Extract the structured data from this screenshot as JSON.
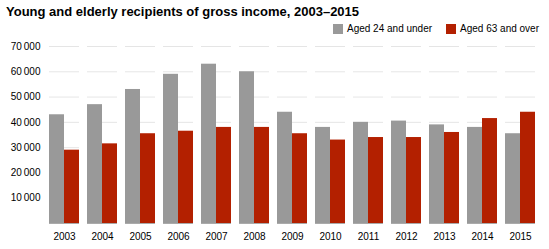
{
  "chart_data": {
    "type": "bar",
    "title": "Young and elderly recipients of gross income, 2003–2015",
    "categories": [
      "2003",
      "2004",
      "2005",
      "2006",
      "2007",
      "2008",
      "2009",
      "2010",
      "2011",
      "2012",
      "2013",
      "2014",
      "2015"
    ],
    "series": [
      {
        "name": "Aged 24 and under",
        "color": "#999999",
        "values": [
          43000,
          47000,
          53000,
          59000,
          63000,
          60000,
          44000,
          38000,
          40000,
          40500,
          39000,
          38000,
          35500
        ]
      },
      {
        "name": "Aged 63 and over",
        "color": "#b32000",
        "values": [
          29000,
          31500,
          35500,
          36500,
          38000,
          38000,
          35500,
          33000,
          34000,
          34000,
          36000,
          41500,
          44000
        ]
      }
    ],
    "ylim": [
      0,
      70000
    ],
    "yticks": [
      {
        "value": 0,
        "label": ""
      },
      {
        "value": 10000,
        "label": "10 000"
      },
      {
        "value": 20000,
        "label": "20 000"
      },
      {
        "value": 30000,
        "label": "30 000"
      },
      {
        "value": 40000,
        "label": "40 000"
      },
      {
        "value": 50000,
        "label": "50 000"
      },
      {
        "value": 60000,
        "label": "60 000"
      },
      {
        "value": 70000,
        "label": "70 000"
      }
    ],
    "grid": true,
    "legend": "top-right"
  }
}
